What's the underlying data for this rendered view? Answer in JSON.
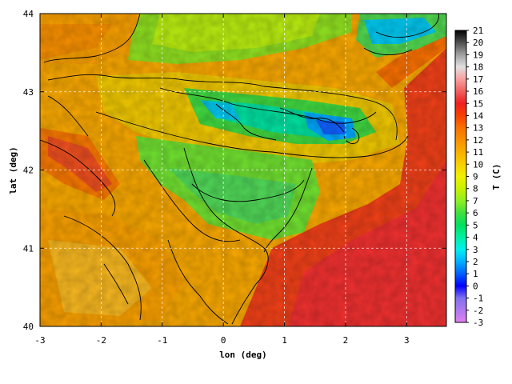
{
  "chart_data": {
    "type": "heatmap",
    "xlabel": "lon (deg)",
    "ylabel": "lat (deg)",
    "colorbar_label": "T (C)",
    "xlim": [
      -3,
      3.65
    ],
    "ylim": [
      40,
      44
    ],
    "xticks": [
      -3,
      -2,
      -1,
      0,
      1,
      2,
      3
    ],
    "yticks": [
      40,
      41,
      42,
      43,
      44
    ],
    "colorbar": {
      "range": [
        -3,
        21
      ],
      "ticks": [
        -3,
        -2,
        -1,
        0,
        1,
        2,
        3,
        4,
        5,
        6,
        7,
        8,
        9,
        10,
        11,
        12,
        13,
        14,
        15,
        16,
        17,
        18,
        19,
        20,
        21
      ],
      "stops": [
        {
          "v": -3,
          "color": "#e080f0"
        },
        {
          "v": -1,
          "color": "#8070f0"
        },
        {
          "v": 0,
          "color": "#0000ff"
        },
        {
          "v": 1,
          "color": "#0060ff"
        },
        {
          "v": 2,
          "color": "#00b0ff"
        },
        {
          "v": 3,
          "color": "#00f0f0"
        },
        {
          "v": 4,
          "color": "#00f0a0"
        },
        {
          "v": 5,
          "color": "#00e060"
        },
        {
          "v": 6,
          "color": "#40e040"
        },
        {
          "v": 7,
          "color": "#90f020"
        },
        {
          "v": 8,
          "color": "#c8f000"
        },
        {
          "v": 9,
          "color": "#f0f000"
        },
        {
          "v": 10,
          "color": "#f8d000"
        },
        {
          "v": 11,
          "color": "#f8b000"
        },
        {
          "v": 12,
          "color": "#f89000"
        },
        {
          "v": 13,
          "color": "#f87000"
        },
        {
          "v": 14,
          "color": "#f84000"
        },
        {
          "v": 15,
          "color": "#f02020"
        },
        {
          "v": 16,
          "color": "#f06060"
        },
        {
          "v": 17,
          "color": "#f8a0a0"
        },
        {
          "v": 18,
          "color": "#e0e0e0"
        },
        {
          "v": 19,
          "color": "#a0a0a0"
        },
        {
          "v": 20,
          "color": "#505050"
        },
        {
          "v": 21,
          "color": "#000000"
        }
      ]
    },
    "contour_interval": 2,
    "grid": true
  }
}
